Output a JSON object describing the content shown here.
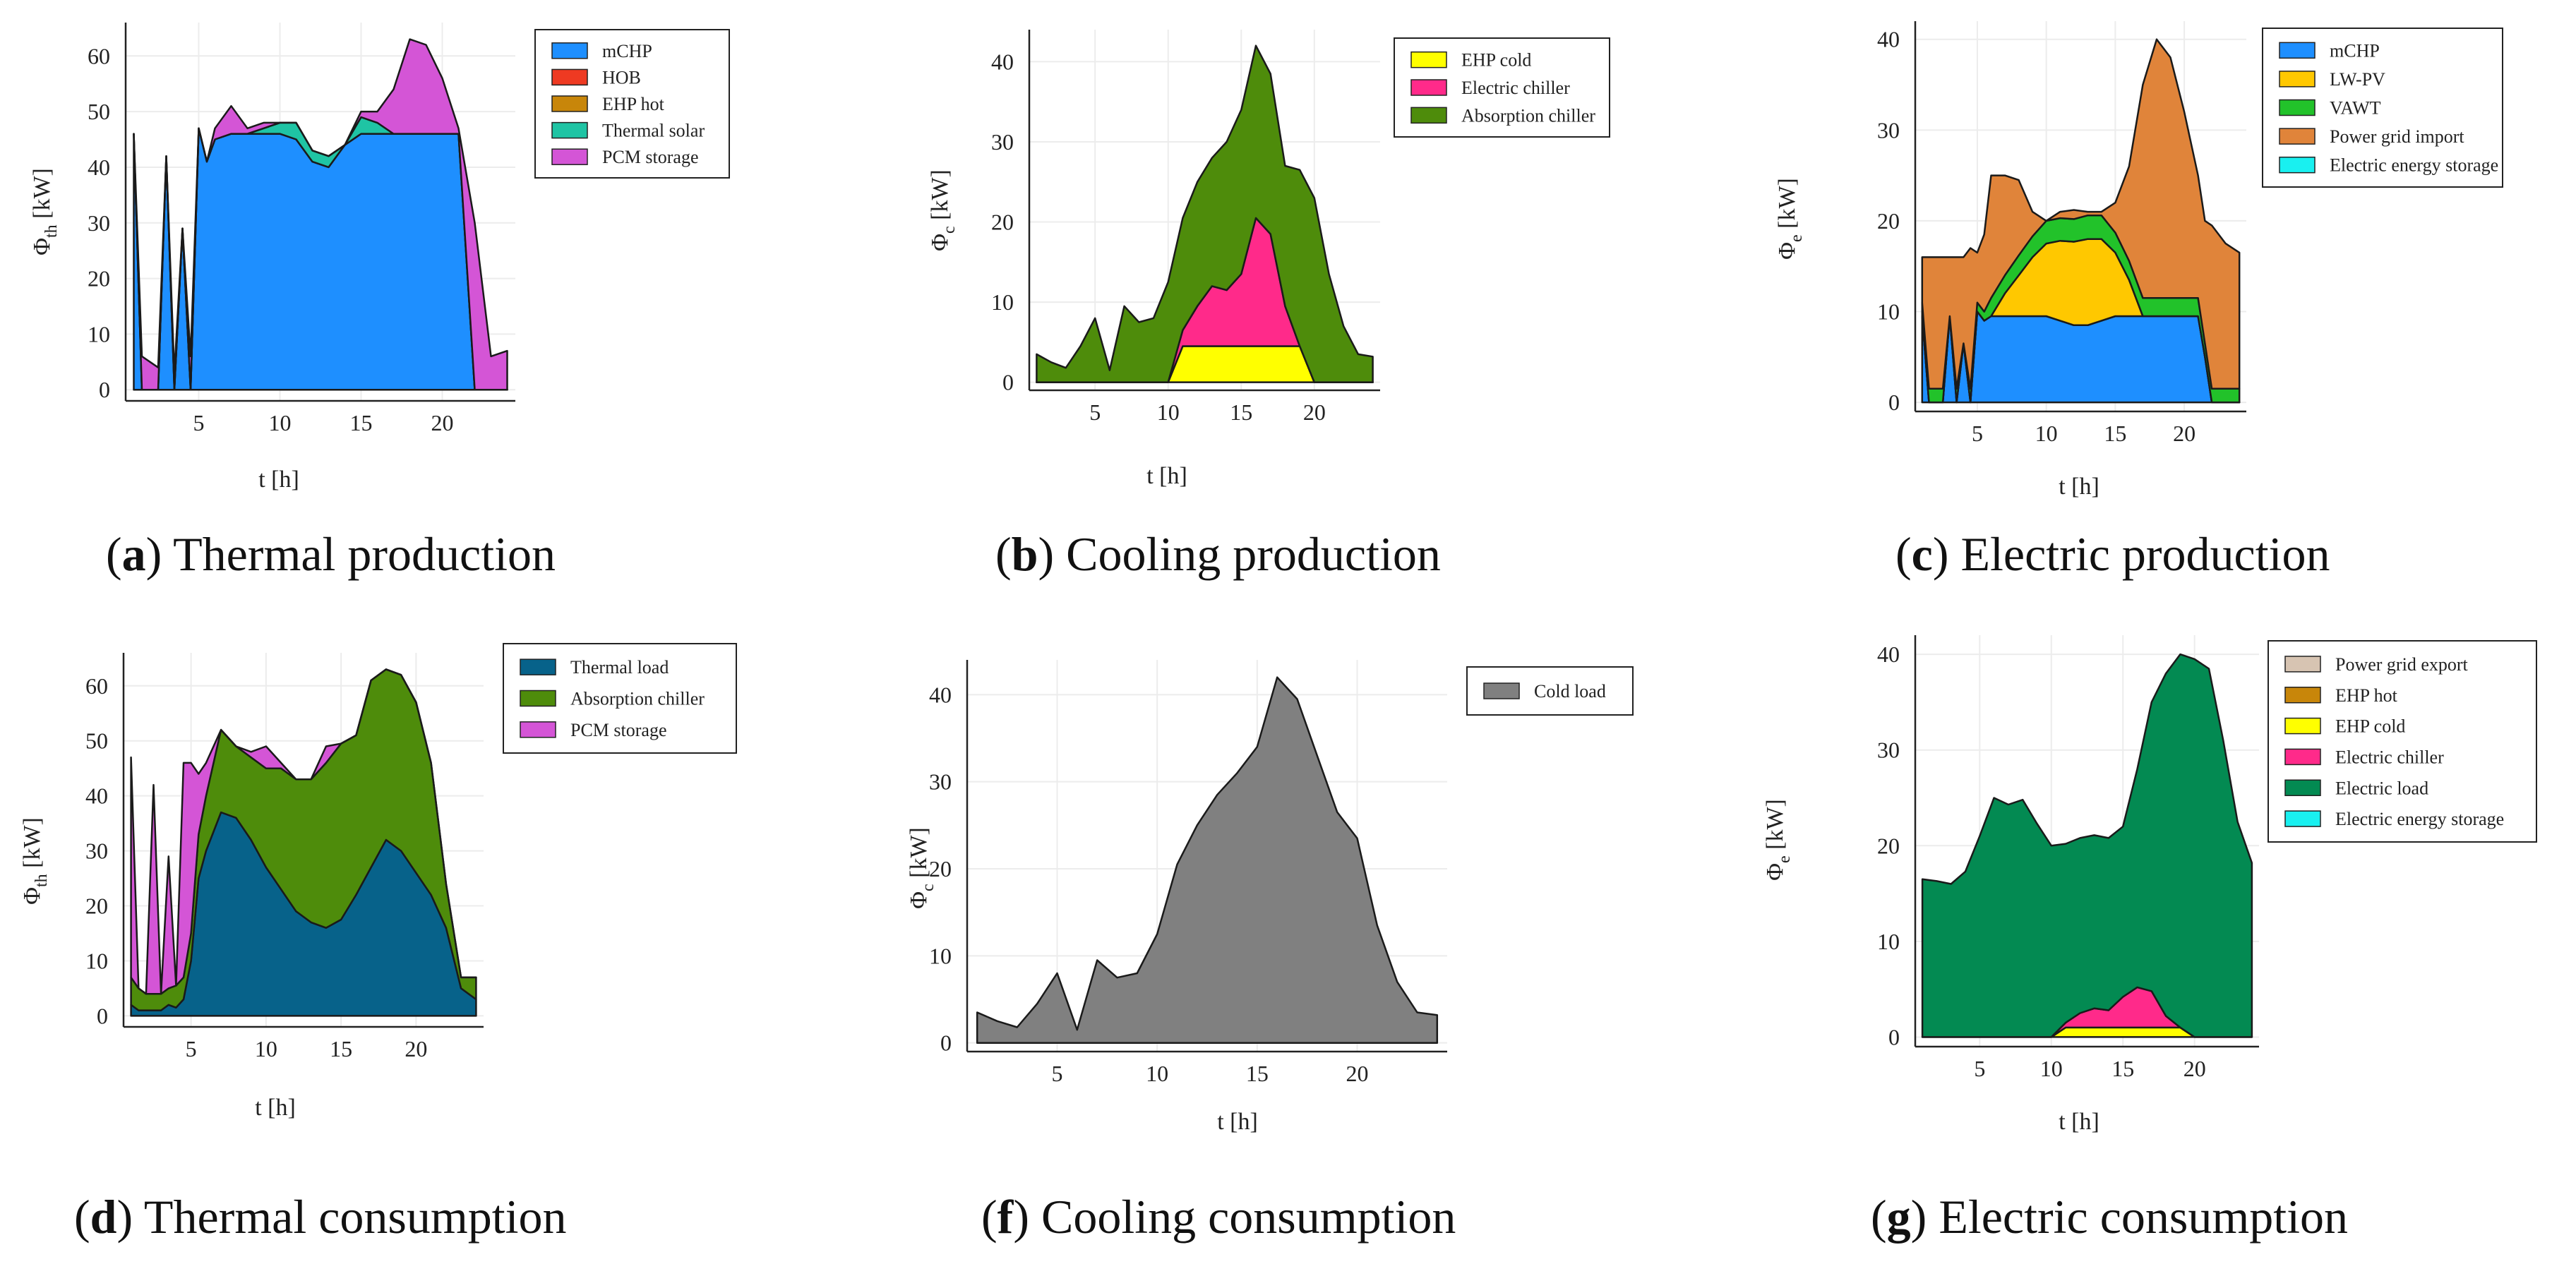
{
  "chart_data": [
    {
      "id": "a",
      "type": "area",
      "stacked": true,
      "letter": "a",
      "caption": "Thermal production",
      "xlabel": "t [h]",
      "ylabel_base": "Φ",
      "ylabel_sub": "th",
      "ylabel_unit": " [kW]",
      "xlim": [
        0.5,
        24.5
      ],
      "ylim": [
        -2,
        66
      ],
      "xticks": [
        5,
        10,
        15,
        20
      ],
      "yticks": [
        0,
        10,
        20,
        30,
        40,
        50,
        60
      ],
      "legend_position": "top-right",
      "x": [
        1,
        1.5,
        2,
        2.5,
        3,
        3.5,
        4,
        4.5,
        5,
        5.5,
        6,
        7,
        8,
        9,
        10,
        11,
        12,
        13,
        14,
        15,
        16,
        17,
        18,
        19,
        20,
        21,
        22,
        23,
        24
      ],
      "series": [
        {
          "name": "mCHP",
          "color": "#1e8fff",
          "values": [
            46,
            0,
            0,
            0,
            42,
            0,
            29,
            0,
            47,
            41,
            45,
            46,
            46,
            46,
            46,
            45,
            41,
            40,
            44,
            46,
            46,
            46,
            46,
            46,
            46,
            46,
            0,
            0,
            0
          ]
        },
        {
          "name": "HOB",
          "color": "#ee3a22",
          "values": [
            0,
            0,
            0,
            0,
            0,
            0,
            0,
            0,
            0,
            0,
            0,
            0,
            0,
            0,
            0,
            0,
            0,
            0,
            0,
            0,
            0,
            0,
            0,
            0,
            0,
            0,
            0,
            0,
            0
          ]
        },
        {
          "name": "EHP hot",
          "color": "#c8860a",
          "values": [
            0,
            0,
            0,
            0,
            0,
            0,
            0,
            0,
            0,
            0,
            0,
            0,
            0,
            0,
            0,
            0,
            0,
            0,
            0,
            0,
            0,
            0,
            0,
            0,
            0,
            0,
            0,
            0,
            0
          ]
        },
        {
          "name": "Thermal solar",
          "color": "#1fc4a4",
          "values": [
            0,
            0,
            0,
            0,
            0,
            0,
            0,
            0,
            0,
            0,
            0,
            0,
            0,
            1,
            2,
            3,
            2,
            2,
            0,
            3,
            2,
            0,
            0,
            0,
            0,
            0,
            0,
            0,
            0
          ]
        },
        {
          "name": "PCM storage",
          "color": "#d455d6",
          "values": [
            0,
            6,
            5,
            4,
            0,
            3,
            0,
            6,
            0,
            0,
            2,
            5,
            1,
            1,
            0,
            0,
            0,
            0,
            0,
            1,
            2,
            8,
            17,
            16,
            10,
            1,
            30,
            6,
            7
          ]
        }
      ]
    },
    {
      "id": "b",
      "type": "area",
      "stacked": true,
      "letter": "b",
      "caption": "Cooling production",
      "xlabel": "t [h]",
      "ylabel_base": "Φ",
      "ylabel_sub": "c",
      "ylabel_unit": " [kW]",
      "xlim": [
        0.5,
        24.5
      ],
      "ylim": [
        -1,
        44
      ],
      "xticks": [
        5,
        10,
        15,
        20
      ],
      "yticks": [
        0,
        10,
        20,
        30,
        40
      ],
      "legend_position": "top-right",
      "x": [
        1,
        2,
        3,
        4,
        5,
        6,
        7,
        8,
        9,
        10,
        11,
        12,
        13,
        14,
        15,
        16,
        17,
        18,
        19,
        20,
        21,
        22,
        23,
        24
      ],
      "series": [
        {
          "name": "EHP cold",
          "color": "#ffff00",
          "values": [
            0,
            0,
            0,
            0,
            0,
            0,
            0,
            0,
            0,
            0,
            4.5,
            4.5,
            4.5,
            4.5,
            4.5,
            4.5,
            4.5,
            4.5,
            4.5,
            0,
            0,
            0,
            0,
            0
          ]
        },
        {
          "name": "Electric chiller",
          "color": "#ff2a8a",
          "values": [
            0,
            0,
            0,
            0,
            0,
            0,
            0,
            0,
            0,
            0,
            2,
            5,
            7.5,
            7,
            9,
            16,
            14,
            5,
            0,
            0,
            0,
            0,
            0,
            0
          ]
        },
        {
          "name": "Absorption chiller",
          "color": "#4e8c0b",
          "values": [
            3.5,
            2.5,
            1.8,
            4.5,
            8,
            1.5,
            9.5,
            7.5,
            8,
            12.5,
            14,
            15.5,
            16,
            18.5,
            20.5,
            21.5,
            20,
            17.5,
            22,
            23,
            13.5,
            7,
            3.5,
            3.2
          ]
        }
      ]
    },
    {
      "id": "c",
      "type": "area",
      "stacked": true,
      "letter": "c",
      "caption": "Electric production",
      "xlabel": "t [h]",
      "ylabel_base": "Φ",
      "ylabel_sub": "e",
      "ylabel_unit": " [kW]",
      "xlim": [
        0.5,
        24.5
      ],
      "ylim": [
        -1,
        42
      ],
      "xticks": [
        5,
        10,
        15,
        20
      ],
      "yticks": [
        0,
        10,
        20,
        30,
        40
      ],
      "legend_position": "top-right",
      "x": [
        1,
        1.5,
        2,
        2.5,
        3,
        3.5,
        4,
        4.5,
        5,
        5.5,
        6,
        7,
        8,
        9,
        10,
        11,
        12,
        13,
        14,
        15,
        16,
        17,
        18,
        19,
        20,
        21,
        21.5,
        22,
        23,
        24
      ],
      "series": [
        {
          "name": "mCHP",
          "color": "#1e8fff",
          "values": [
            9.5,
            0,
            0,
            0,
            9.5,
            0,
            6.5,
            0,
            10,
            9,
            9.5,
            9.5,
            9.5,
            9.5,
            9.5,
            9,
            8.5,
            8.5,
            9,
            9.5,
            9.5,
            9.5,
            9.5,
            9.5,
            9.5,
            9.5,
            5,
            0,
            0,
            0
          ]
        },
        {
          "name": "LW-PV",
          "color": "#ffc800",
          "values": [
            0,
            0,
            0,
            0,
            0,
            0,
            0,
            0,
            0,
            0,
            0,
            2.5,
            4.5,
            6.5,
            8,
            8.8,
            9.2,
            9.5,
            9,
            7,
            4,
            0,
            0,
            0,
            0,
            0,
            0,
            0,
            0,
            0
          ]
        },
        {
          "name": "VAWT",
          "color": "#22c22a",
          "values": [
            1.5,
            1.5,
            1.5,
            1.5,
            0,
            1.5,
            0,
            1.5,
            1,
            1,
            2,
            2,
            2.2,
            2.3,
            2.5,
            2.5,
            2.5,
            2.6,
            2.6,
            2.2,
            2.1,
            2,
            2,
            2,
            2,
            2,
            1.5,
            1.5,
            1.5,
            1.5
          ]
        },
        {
          "name": "Power grid import",
          "color": "#e0843a",
          "values": [
            5,
            14.5,
            14.5,
            14.5,
            6.5,
            14.5,
            9.5,
            15.5,
            5.5,
            8.5,
            13.5,
            11,
            8.3,
            2.7,
            0,
            0.7,
            1,
            0.4,
            0.4,
            3.3,
            10.4,
            23.5,
            28.5,
            26.5,
            20.5,
            13.5,
            13.5,
            18,
            16,
            15
          ]
        },
        {
          "name": "Electric energy storage",
          "color": "#19f0f0",
          "values": [
            0,
            0,
            0,
            0,
            0,
            0,
            0,
            0,
            0,
            0,
            0,
            0,
            0,
            0,
            0,
            0,
            0,
            0,
            0,
            0,
            0,
            0,
            0,
            0,
            0,
            0,
            0,
            0,
            0,
            0
          ]
        }
      ]
    },
    {
      "id": "d",
      "type": "area",
      "stacked": true,
      "letter": "d",
      "caption": "Thermal consumption",
      "xlabel": "t [h]",
      "ylabel_base": "Φ",
      "ylabel_sub": "th",
      "ylabel_unit": " [kW]",
      "xlim": [
        0.5,
        24.5
      ],
      "ylim": [
        -2,
        66
      ],
      "xticks": [
        5,
        10,
        15,
        20
      ],
      "yticks": [
        0,
        10,
        20,
        30,
        40,
        50,
        60
      ],
      "legend_position": "top-right",
      "x": [
        1,
        1.5,
        2,
        2.5,
        3,
        3.5,
        4,
        4.5,
        5,
        5.5,
        6,
        7,
        8,
        9,
        10,
        11,
        12,
        13,
        14,
        15,
        16,
        17,
        18,
        19,
        20,
        21,
        22,
        23,
        24
      ],
      "series": [
        {
          "name": "Thermal load",
          "color": "#07628a",
          "values": [
            2,
            1,
            1,
            1,
            1,
            2,
            1.5,
            3,
            10,
            25,
            30,
            37,
            36,
            32,
            27,
            23,
            19,
            17,
            16,
            17.5,
            22,
            27,
            32,
            30,
            26,
            22,
            16,
            5,
            3
          ]
        },
        {
          "name": "Absorption chiller",
          "color": "#4e8c0b",
          "values": [
            5,
            4,
            3,
            3,
            3,
            3,
            4,
            4,
            5,
            8,
            10,
            15,
            13,
            15,
            18,
            22,
            24,
            26,
            30,
            32,
            29,
            34,
            31,
            32,
            31,
            24,
            8,
            2,
            4
          ]
        },
        {
          "name": "PCM storage",
          "color": "#d455d6",
          "values": [
            40,
            0,
            0,
            38,
            0,
            24,
            0,
            39,
            31,
            11,
            6,
            0,
            0,
            1,
            4,
            1,
            0,
            0,
            3,
            0,
            0,
            0,
            0,
            0,
            0,
            0,
            0,
            0,
            0
          ]
        }
      ]
    },
    {
      "id": "f",
      "type": "area",
      "stacked": true,
      "letter": "f",
      "caption": "Cooling consumption",
      "xlabel": "t [h]",
      "ylabel_base": "Φ",
      "ylabel_sub": "c",
      "ylabel_unit": " [kW]",
      "xlim": [
        0.5,
        24.5
      ],
      "ylim": [
        -1,
        44
      ],
      "xticks": [
        5,
        10,
        15,
        20
      ],
      "yticks": [
        0,
        10,
        20,
        30,
        40
      ],
      "legend_position": "top-right",
      "x": [
        1,
        2,
        3,
        4,
        5,
        6,
        7,
        8,
        9,
        10,
        11,
        12,
        13,
        14,
        15,
        16,
        17,
        18,
        19,
        20,
        21,
        22,
        23,
        24
      ],
      "series": [
        {
          "name": "Cold load",
          "color": "#808080",
          "values": [
            3.5,
            2.5,
            1.8,
            4.5,
            8,
            1.5,
            9.5,
            7.5,
            8,
            12.5,
            20.5,
            25,
            28.5,
            31,
            34,
            42,
            39.5,
            33,
            26.5,
            23.5,
            13.5,
            7,
            3.5,
            3.2
          ]
        }
      ]
    },
    {
      "id": "g",
      "type": "area",
      "stacked": true,
      "letter": "g",
      "caption": "Electric consumption",
      "xlabel": "t [h]",
      "ylabel_base": "Φ",
      "ylabel_sub": "e",
      "ylabel_unit": " [kW]",
      "xlim": [
        0.5,
        24.5
      ],
      "ylim": [
        -1,
        42
      ],
      "xticks": [
        5,
        10,
        15,
        20
      ],
      "yticks": [
        0,
        10,
        20,
        30,
        40
      ],
      "legend_position": "top-right",
      "x": [
        1,
        2,
        3,
        4,
        5,
        6,
        7,
        8,
        9,
        10,
        11,
        12,
        13,
        14,
        15,
        16,
        17,
        18,
        19,
        20,
        21,
        22,
        23,
        24
      ],
      "series": [
        {
          "name": "Power grid export",
          "color": "#d7c4b2",
          "values": [
            0,
            0,
            0,
            0,
            0,
            0,
            0,
            0,
            0,
            0,
            0,
            0,
            0,
            0,
            0,
            0,
            0,
            0,
            0,
            0,
            0,
            0,
            0,
            0
          ]
        },
        {
          "name": "EHP hot",
          "color": "#c8860a",
          "values": [
            0,
            0,
            0,
            0,
            0,
            0,
            0,
            0,
            0,
            0,
            0,
            0,
            0,
            0,
            0,
            0,
            0,
            0,
            0,
            0,
            0,
            0,
            0,
            0
          ]
        },
        {
          "name": "EHP cold",
          "color": "#ffff00",
          "values": [
            0,
            0,
            0,
            0,
            0,
            0,
            0,
            0,
            0,
            0,
            1,
            1,
            1,
            1,
            1,
            1,
            1,
            1,
            1,
            0,
            0,
            0,
            0,
            0
          ]
        },
        {
          "name": "Electric chiller",
          "color": "#ff2a8a",
          "values": [
            0,
            0,
            0,
            0,
            0,
            0,
            0,
            0,
            0,
            0,
            0.5,
            1.5,
            2,
            1.8,
            3.2,
            4.2,
            3.8,
            1.2,
            0,
            0,
            0,
            0,
            0,
            0
          ]
        },
        {
          "name": "Electric load",
          "color": "#038a52",
          "values": [
            16.5,
            16.3,
            16,
            17.3,
            21,
            25,
            24.3,
            24.8,
            22.3,
            20,
            18.7,
            18.3,
            18.1,
            18,
            17.8,
            22.8,
            30.2,
            35.8,
            39,
            39.5,
            38.5,
            31,
            22.5,
            18.2
          ]
        },
        {
          "name": "Electric energy storage",
          "color": "#19f0f0",
          "values": [
            0,
            0,
            0,
            0,
            0,
            0,
            0,
            0,
            0,
            0,
            0,
            0,
            0,
            0,
            0,
            0,
            0,
            0,
            0,
            0,
            0,
            0,
            0,
            0
          ]
        }
      ]
    }
  ]
}
